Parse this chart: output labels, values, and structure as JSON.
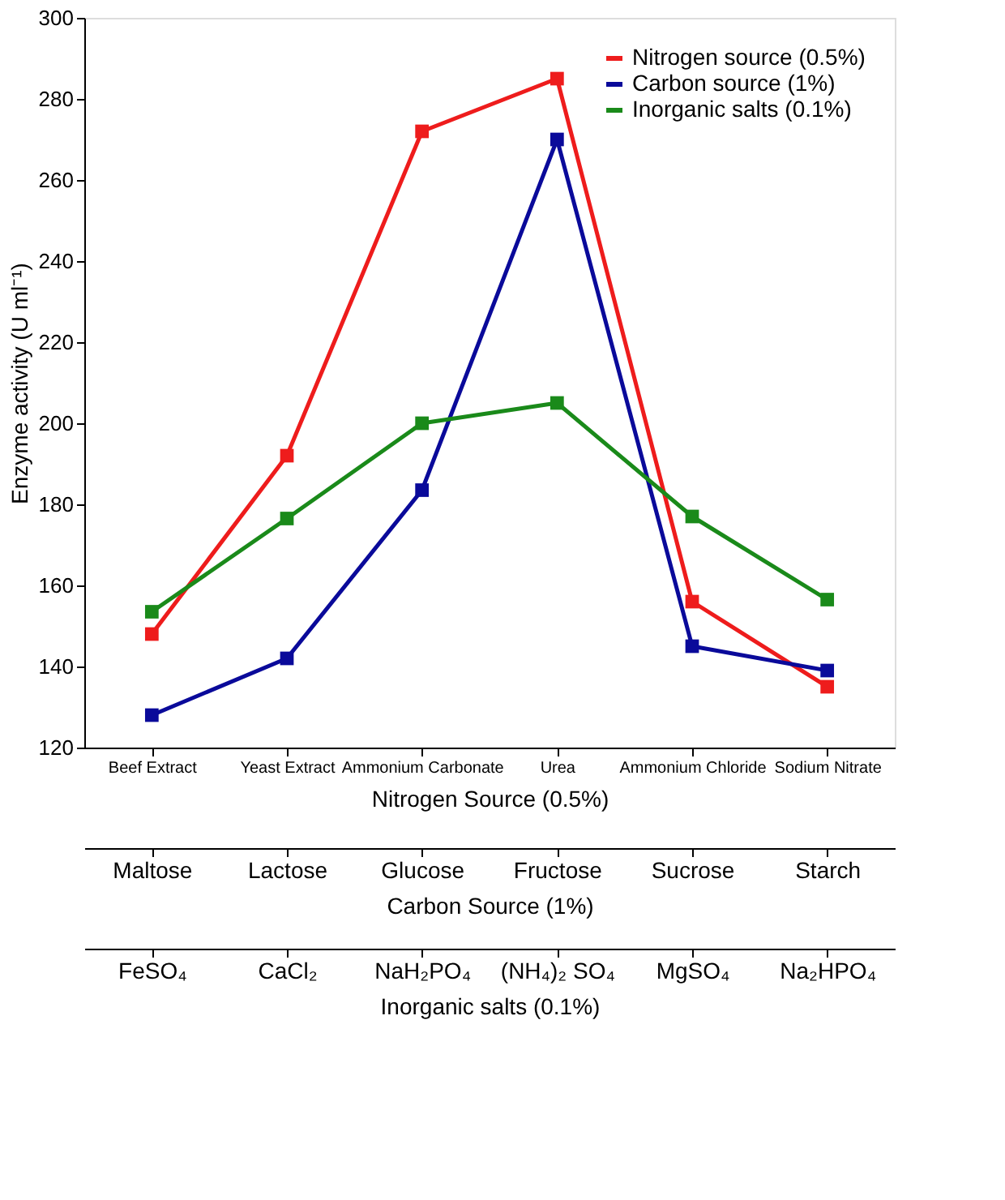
{
  "chart_data": {
    "type": "line",
    "xlabel": "Nitrogen Source (0.5%)",
    "ylabel": "Enzyme activity (U ml⁻¹)",
    "categories": [
      "Beef Extract",
      "Yeast Extract",
      "Ammonium Carbonate",
      "Urea",
      "Ammonium Chloride",
      "Sodium Nitrate"
    ],
    "series": [
      {
        "name": "Nitrogen source (0.5%)",
        "color": "#ee1c1c",
        "values": [
          148,
          192,
          272,
          285,
          156,
          135
        ]
      },
      {
        "name": "Carbon source (1%)",
        "color": "#0a0a9a",
        "values": [
          128,
          142,
          183.5,
          270,
          145,
          139
        ]
      },
      {
        "name": "Inorganic salts (0.1%)",
        "color": "#1a8a1a",
        "values": [
          153.5,
          176.5,
          200,
          205,
          177,
          156.5
        ]
      }
    ],
    "annotations": [
      "Maltose",
      "Lactose",
      "Glucose",
      "Fructose",
      "Sucrose",
      "Starch",
      "Carbon Source (1%)",
      "FeSO₄",
      "CaCl₂",
      "NaH₂PO₄",
      "(NH₄)₂ SO₄",
      "MgSO₄",
      "Na₂HPO₄",
      "Inorganic salts (0.1%)"
    ],
    "ylim": [
      120,
      300
    ],
    "yticks": [
      120,
      140,
      160,
      180,
      200,
      220,
      240,
      260,
      280,
      300
    ],
    "marker": "square",
    "line_style": "solid",
    "grid": false,
    "legend": "top right"
  }
}
